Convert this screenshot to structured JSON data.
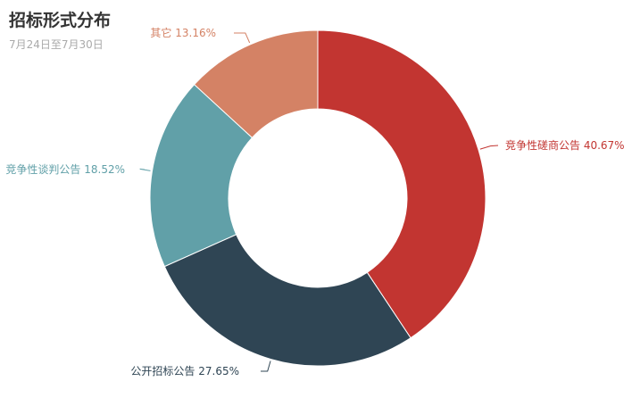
{
  "chart_data": {
    "type": "pie",
    "variant": "donut",
    "title": "招标形式分布",
    "subtitle": "7月24日至7月30日",
    "legend": "none",
    "slices": [
      {
        "name": "竞争性磋商公告",
        "value": 40.67,
        "label": "竞争性磋商公告 40.67%",
        "color": "#c23531"
      },
      {
        "name": "公开招标公告",
        "value": 27.65,
        "label": "公开招标公告 27.65%",
        "color": "#2f4554"
      },
      {
        "name": "竞争性谈判公告",
        "value": 18.52,
        "label": "竞争性谈判公告 18.52%",
        "color": "#61a0a8"
      },
      {
        "name": "其它",
        "value": 13.16,
        "label": "其它 13.16%",
        "color": "#d48265"
      }
    ]
  }
}
